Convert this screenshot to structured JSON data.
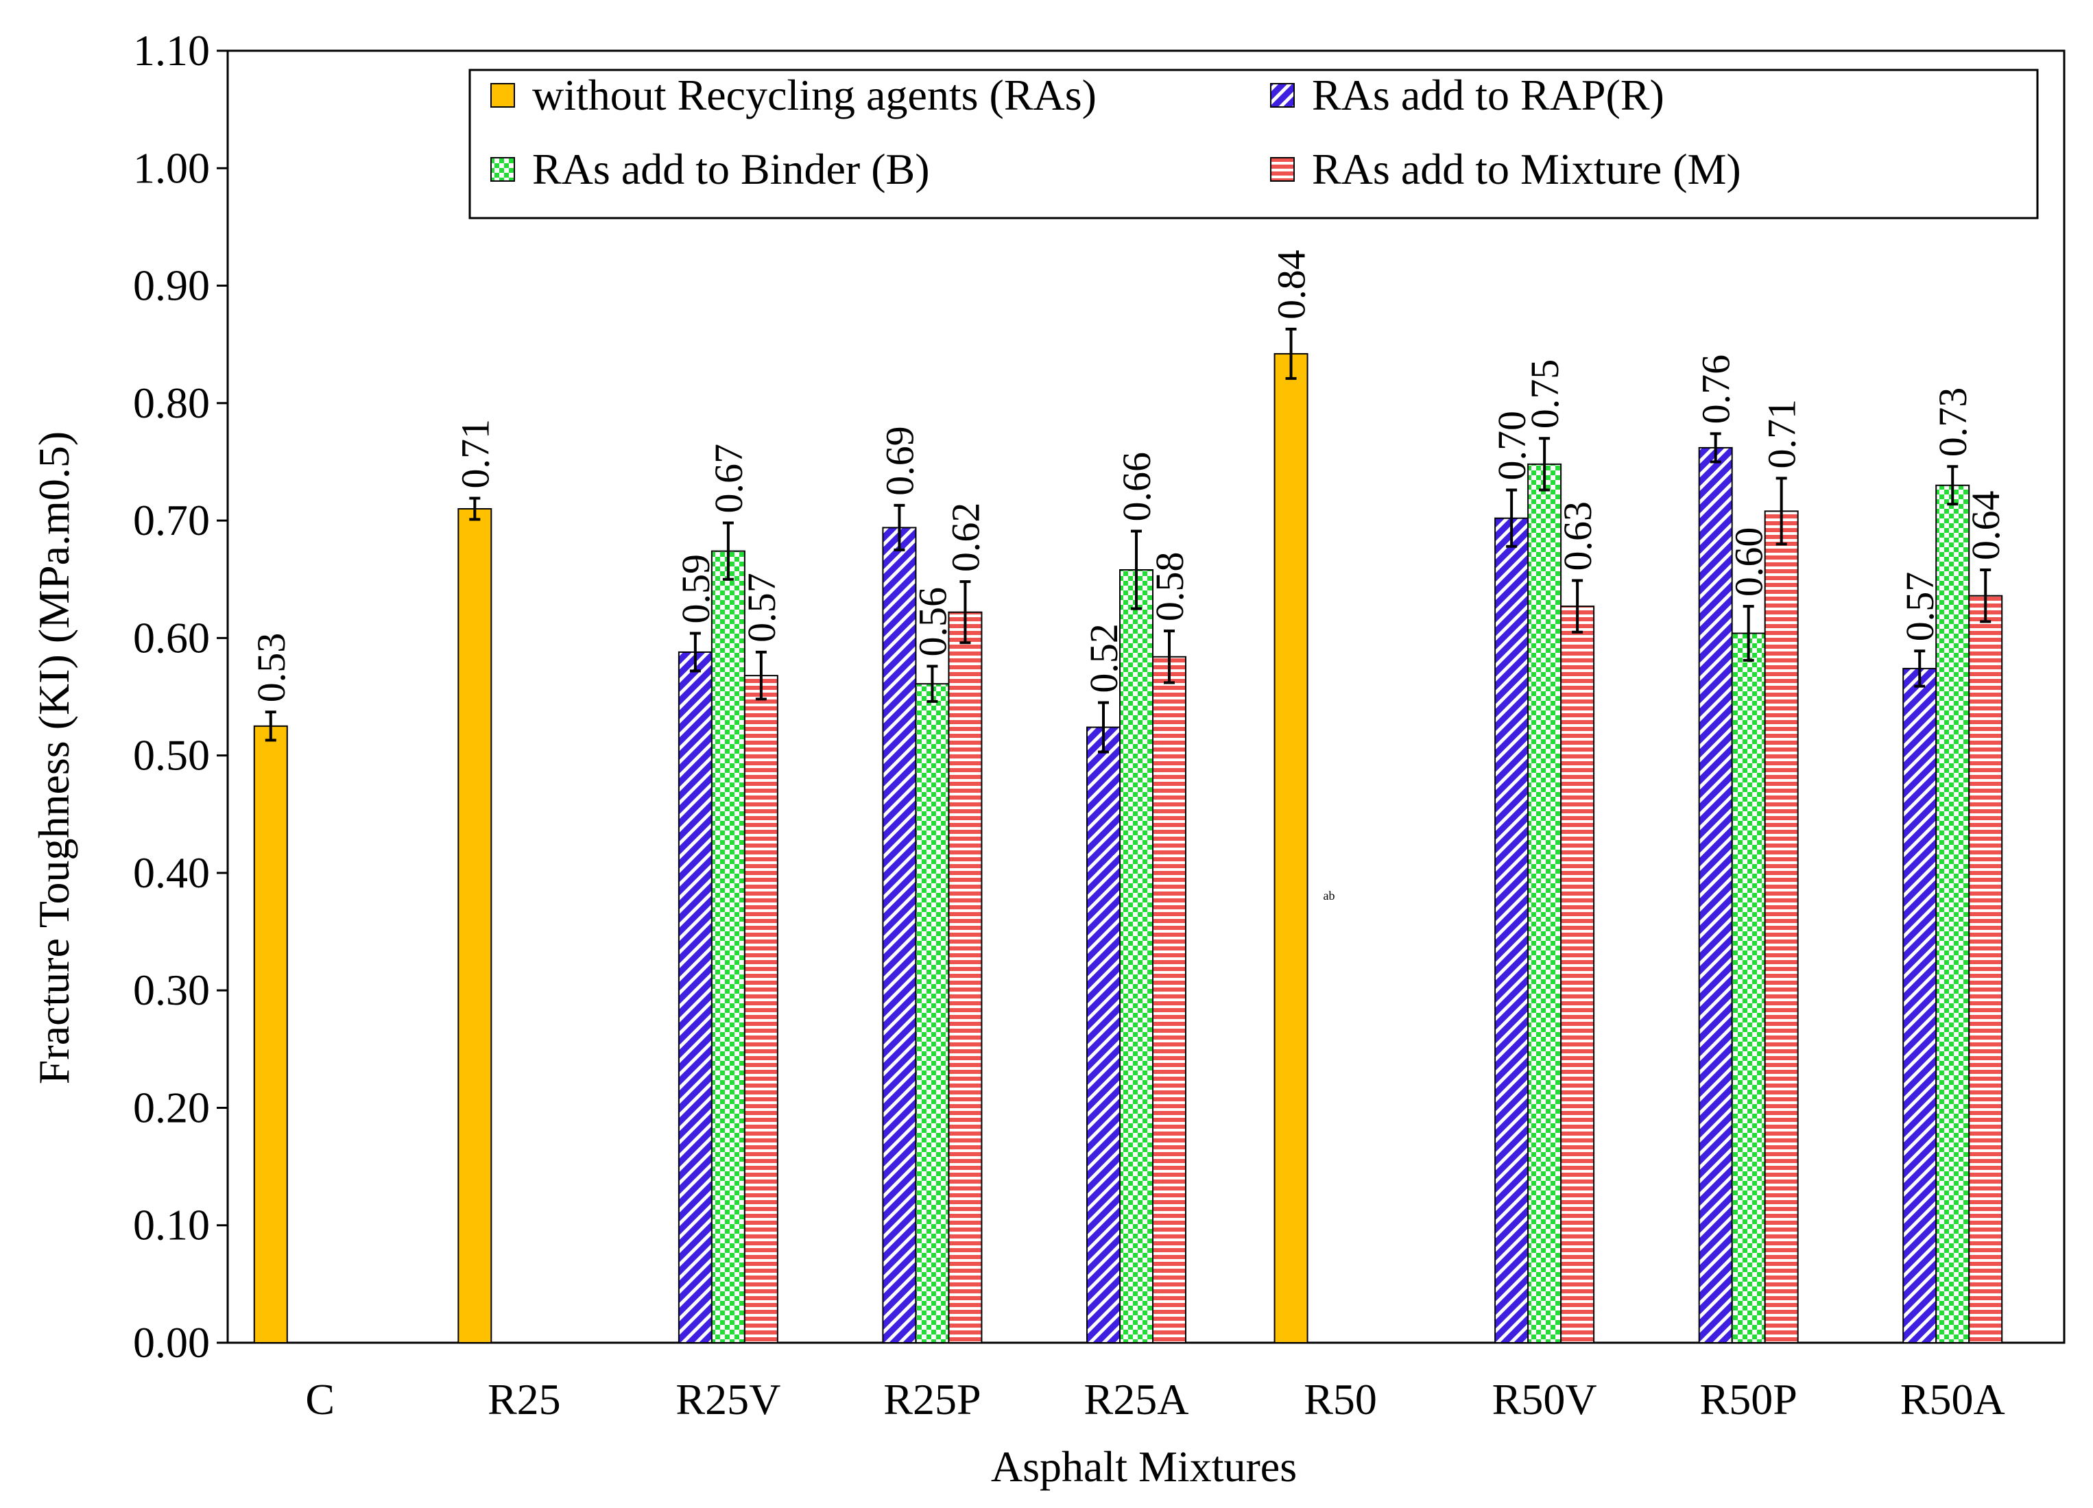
{
  "chart_data": {
    "type": "bar",
    "title": "",
    "xlabel": "Asphalt Mixtures",
    "ylabel": "Fracture Toughness (KI) (MPa.m0.5)",
    "ylim": [
      0,
      1.1
    ],
    "yticks": [
      "0.00",
      "0.10",
      "0.20",
      "0.30",
      "0.40",
      "0.50",
      "0.60",
      "0.70",
      "0.80",
      "0.90",
      "1.00",
      "1.10"
    ],
    "categories": [
      "C",
      "R25",
      "R25V",
      "R25P",
      "R25A",
      "R50",
      "R50V",
      "R50P",
      "R50A"
    ],
    "legend_position": "top-right",
    "series": [
      {
        "name": "without Recycling agents (RAs)",
        "key": "none",
        "color": "#FFC000",
        "values": [
          0.525,
          0.71,
          null,
          null,
          null,
          0.842,
          null,
          null,
          null
        ],
        "errors": [
          0.012,
          0.009,
          null,
          null,
          null,
          0.021,
          null,
          null,
          null
        ],
        "labels": [
          "0.53",
          "0.71",
          "",
          "",
          "",
          "0.84",
          "",
          "",
          ""
        ]
      },
      {
        "name": "RAs add to RAP(R)",
        "key": "rap",
        "color": "#3F1FE0",
        "values": [
          null,
          null,
          0.588,
          0.694,
          0.524,
          null,
          0.702,
          0.762,
          0.574
        ],
        "errors": [
          null,
          null,
          0.016,
          0.019,
          0.021,
          null,
          0.024,
          0.012,
          0.015
        ],
        "labels": [
          "",
          "",
          "0.59",
          "0.69",
          "0.52",
          "",
          "0.70",
          "0.76",
          "0.57"
        ]
      },
      {
        "name": "RAs add to Binder (B)",
        "key": "binder",
        "color": "#22DD33",
        "values": [
          null,
          null,
          0.674,
          0.561,
          0.658,
          null,
          0.748,
          0.604,
          0.73
        ],
        "errors": [
          null,
          null,
          0.024,
          0.015,
          0.033,
          null,
          0.022,
          0.023,
          0.016
        ],
        "labels": [
          "",
          "",
          "0.67",
          "0.56",
          "0.66",
          "",
          "0.75",
          "0.60",
          "0.73"
        ]
      },
      {
        "name": "RAs add to Mixture (M)",
        "key": "mixture",
        "color": "#EF5350",
        "values": [
          null,
          null,
          0.568,
          0.622,
          0.584,
          null,
          0.627,
          0.708,
          0.636
        ],
        "errors": [
          null,
          null,
          0.02,
          0.026,
          0.022,
          null,
          0.022,
          0.028,
          0.022
        ],
        "labels": [
          "",
          "",
          "0.57",
          "0.62",
          "0.58",
          "",
          "0.63",
          "0.71",
          "0.64"
        ]
      }
    ],
    "annotation": "ab"
  }
}
